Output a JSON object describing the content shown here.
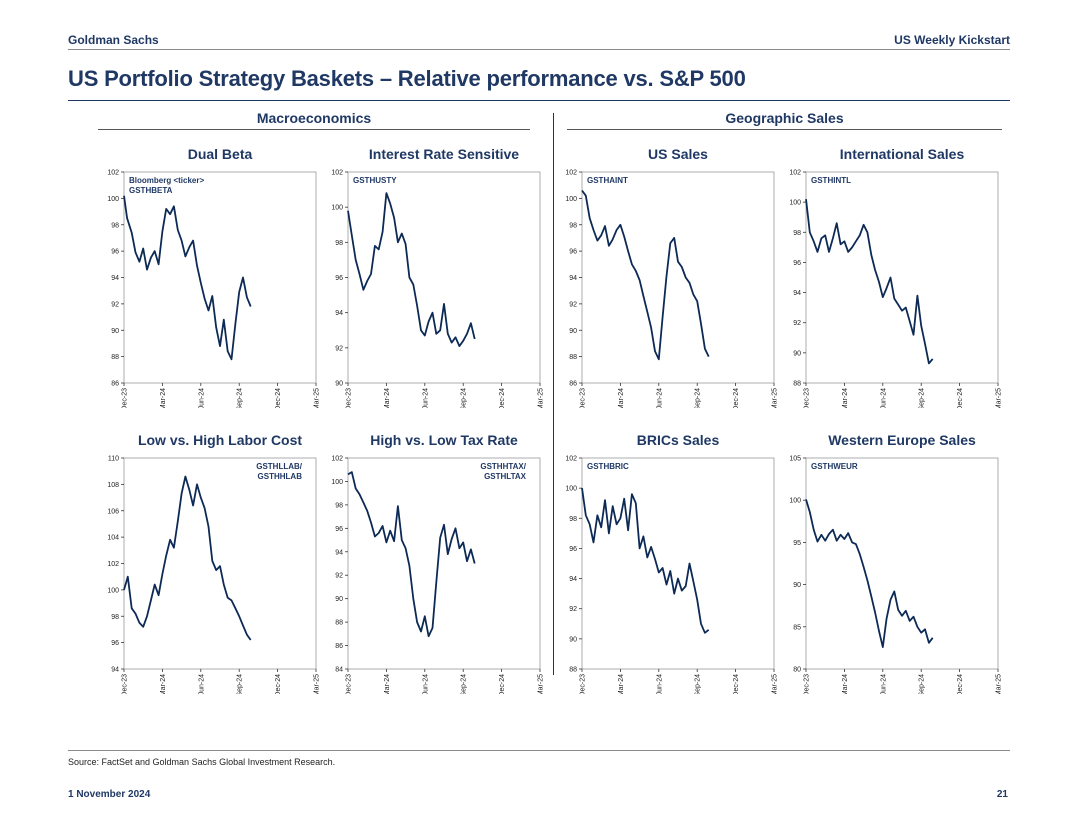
{
  "header": {
    "firm": "Goldman Sachs",
    "report": "US Weekly Kickstart"
  },
  "title": "US Portfolio Strategy Baskets – Relative performance vs. S&P 500",
  "sections": {
    "left": "Macroeconomics",
    "right": "Geographic Sales"
  },
  "footer": {
    "source": "Source: FactSet and Goldman Sachs Global Investment Research.",
    "date": "1 November 2024",
    "page": "21"
  },
  "colors": {
    "line": "#0c2a55",
    "text": "#1f3864",
    "axis": "#333333"
  },
  "chart_data": [
    {
      "type": "line",
      "title": "Dual Beta",
      "annotation": [
        "Bloomberg <ticker>",
        "GSTHBETA"
      ],
      "annotation_align": "left",
      "ylim": [
        86,
        102
      ],
      "yticks": [
        86,
        88,
        90,
        92,
        94,
        96,
        98,
        100,
        102
      ],
      "xticks": [
        "Dec-23",
        "Mar-24",
        "Jun-24",
        "Sep-24",
        "Dec-24",
        "Mar-25"
      ],
      "x": [
        0,
        0.08,
        0.2,
        0.3,
        0.4,
        0.5,
        0.6,
        0.7,
        0.8,
        0.9,
        1.0,
        1.1,
        1.2,
        1.3,
        1.4,
        1.5,
        1.6,
        1.7,
        1.8,
        1.9,
        2.0,
        2.1,
        2.2,
        2.3,
        2.4,
        2.5,
        2.6,
        2.7,
        2.8,
        2.9,
        3.0,
        3.1,
        3.2,
        3.3
      ],
      "values": [
        100.2,
        98.5,
        97.4,
        95.9,
        95.2,
        96.2,
        94.6,
        95.5,
        96.0,
        95.0,
        97.5,
        99.2,
        98.8,
        99.4,
        97.6,
        96.8,
        95.6,
        96.3,
        96.8,
        94.9,
        93.6,
        92.4,
        91.5,
        92.6,
        90.2,
        88.8,
        90.8,
        88.4,
        87.8,
        90.5,
        92.9,
        94.0,
        92.5,
        91.8
      ]
    },
    {
      "type": "line",
      "title": "Interest Rate Sensitive",
      "annotation": [
        "GSTHUSTY"
      ],
      "annotation_align": "left",
      "ylim": [
        90,
        102
      ],
      "yticks": [
        90,
        92,
        94,
        96,
        98,
        100,
        102
      ],
      "xticks": [
        "Dec-23",
        "Mar-24",
        "Jun-24",
        "Sep-24",
        "Dec-24",
        "Mar-25"
      ],
      "x": [
        0,
        0.1,
        0.2,
        0.3,
        0.4,
        0.5,
        0.6,
        0.7,
        0.8,
        0.9,
        1.0,
        1.1,
        1.2,
        1.3,
        1.4,
        1.5,
        1.6,
        1.7,
        1.8,
        1.9,
        2.0,
        2.1,
        2.2,
        2.3,
        2.4,
        2.5,
        2.6,
        2.7,
        2.8,
        2.9,
        3.0,
        3.1,
        3.2,
        3.3
      ],
      "values": [
        99.8,
        98.4,
        97.0,
        96.2,
        95.3,
        95.8,
        96.2,
        97.8,
        97.6,
        98.6,
        100.8,
        100.2,
        99.4,
        98.0,
        98.5,
        97.9,
        96.0,
        95.6,
        94.4,
        93.0,
        92.7,
        93.5,
        94.0,
        92.8,
        93.0,
        94.5,
        92.8,
        92.3,
        92.6,
        92.1,
        92.4,
        92.8,
        93.4,
        92.5
      ]
    },
    {
      "type": "line",
      "title": "US Sales",
      "annotation": [
        "GSTHAINT"
      ],
      "annotation_align": "left",
      "ylim": [
        86,
        102
      ],
      "yticks": [
        86,
        88,
        90,
        92,
        94,
        96,
        98,
        100,
        102
      ],
      "xticks": [
        "Dec-23",
        "Mar-24",
        "Jun-24",
        "Sep-24",
        "Dec-24",
        "Mar-25"
      ],
      "x": [
        0,
        0.1,
        0.2,
        0.3,
        0.4,
        0.5,
        0.6,
        0.7,
        0.8,
        0.9,
        1.0,
        1.1,
        1.2,
        1.3,
        1.4,
        1.5,
        1.6,
        1.7,
        1.8,
        1.9,
        2.0,
        2.1,
        2.2,
        2.3,
        2.4,
        2.5,
        2.6,
        2.7,
        2.8,
        2.9,
        3.0,
        3.1,
        3.2,
        3.3
      ],
      "values": [
        100.6,
        100.2,
        98.5,
        97.6,
        96.8,
        97.2,
        97.9,
        96.4,
        96.9,
        97.6,
        98.0,
        97.1,
        96.0,
        95.0,
        94.5,
        93.8,
        92.6,
        91.4,
        90.2,
        88.4,
        87.8,
        91.0,
        94.1,
        96.6,
        97.0,
        95.2,
        94.8,
        94.0,
        93.6,
        92.7,
        92.2,
        90.5,
        88.6,
        88.0
      ]
    },
    {
      "type": "line",
      "title": "International Sales",
      "annotation": [
        "GSTHINTL"
      ],
      "annotation_align": "left",
      "ylim": [
        88,
        102
      ],
      "yticks": [
        88,
        90,
        92,
        94,
        96,
        98,
        100,
        102
      ],
      "xticks": [
        "Dec-23",
        "Mar-24",
        "Jun-24",
        "Sep-24",
        "Dec-24",
        "Mar-25"
      ],
      "x": [
        0,
        0.1,
        0.2,
        0.3,
        0.4,
        0.5,
        0.6,
        0.7,
        0.8,
        0.9,
        1.0,
        1.1,
        1.2,
        1.3,
        1.4,
        1.5,
        1.6,
        1.7,
        1.8,
        1.9,
        2.0,
        2.1,
        2.2,
        2.3,
        2.4,
        2.5,
        2.6,
        2.7,
        2.8,
        2.9,
        3.0,
        3.1,
        3.2,
        3.3
      ],
      "values": [
        100.2,
        98.0,
        97.4,
        96.7,
        97.6,
        97.8,
        96.7,
        97.6,
        98.6,
        97.2,
        97.4,
        96.7,
        97.0,
        97.4,
        97.8,
        98.5,
        98.0,
        96.5,
        95.5,
        94.7,
        93.7,
        94.3,
        95.0,
        93.6,
        93.2,
        92.8,
        93.0,
        92.1,
        91.2,
        93.8,
        91.8,
        90.6,
        89.3,
        89.6
      ]
    },
    {
      "type": "line",
      "title": "Low vs. High Labor Cost",
      "annotation": [
        "GSTHLLAB/",
        "GSTHHLAB"
      ],
      "annotation_align": "right",
      "ylim": [
        94,
        110
      ],
      "yticks": [
        94,
        96,
        98,
        100,
        102,
        104,
        106,
        108,
        110
      ],
      "xticks": [
        "Dec-23",
        "Mar-24",
        "Jun-24",
        "Sep-24",
        "Dec-24",
        "Mar-25"
      ],
      "x": [
        0,
        0.1,
        0.2,
        0.3,
        0.4,
        0.5,
        0.6,
        0.7,
        0.8,
        0.9,
        1.0,
        1.1,
        1.2,
        1.3,
        1.4,
        1.5,
        1.6,
        1.7,
        1.8,
        1.9,
        2.0,
        2.1,
        2.2,
        2.3,
        2.4,
        2.5,
        2.6,
        2.7,
        2.8,
        2.9,
        3.0,
        3.1,
        3.2,
        3.3
      ],
      "values": [
        100.0,
        101.0,
        98.6,
        98.2,
        97.5,
        97.2,
        98.0,
        99.2,
        100.4,
        99.6,
        101.2,
        102.6,
        103.8,
        103.2,
        105.2,
        107.3,
        108.6,
        107.6,
        106.4,
        108.0,
        107.0,
        106.2,
        104.8,
        102.2,
        101.5,
        101.8,
        100.4,
        99.4,
        99.2,
        98.6,
        98.0,
        97.3,
        96.6,
        96.2
      ]
    },
    {
      "type": "line",
      "title": "High vs. Low Tax Rate",
      "annotation": [
        "GSTHHTAX/",
        "GSTHLTAX"
      ],
      "annotation_align": "right",
      "ylim": [
        84,
        102
      ],
      "yticks": [
        84,
        86,
        88,
        90,
        92,
        94,
        96,
        98,
        100,
        102
      ],
      "xticks": [
        "Dec-23",
        "Mar-24",
        "Jun-24",
        "Sep-24",
        "Dec-24",
        "Mar-25"
      ],
      "x": [
        0,
        0.1,
        0.2,
        0.3,
        0.4,
        0.5,
        0.6,
        0.7,
        0.8,
        0.9,
        1.0,
        1.1,
        1.2,
        1.3,
        1.4,
        1.5,
        1.6,
        1.7,
        1.8,
        1.9,
        2.0,
        2.1,
        2.2,
        2.3,
        2.4,
        2.5,
        2.6,
        2.7,
        2.8,
        2.9,
        3.0,
        3.1,
        3.2,
        3.3
      ],
      "values": [
        100.6,
        100.8,
        99.4,
        98.9,
        98.2,
        97.5,
        96.5,
        95.3,
        95.6,
        96.2,
        94.8,
        95.8,
        94.9,
        97.9,
        95.0,
        94.3,
        92.8,
        90.0,
        88.0,
        87.2,
        88.5,
        86.8,
        87.5,
        91.4,
        95.2,
        96.3,
        93.8,
        95.1,
        96.0,
        94.3,
        94.8,
        93.2,
        94.2,
        93.0
      ]
    },
    {
      "type": "line",
      "title": "BRICs Sales",
      "annotation": [
        "GSTHBRIC"
      ],
      "annotation_align": "left",
      "ylim": [
        88,
        102
      ],
      "yticks": [
        88,
        90,
        92,
        94,
        96,
        98,
        100,
        102
      ],
      "xticks": [
        "Dec-23",
        "Mar-24",
        "Jun-24",
        "Sep-24",
        "Dec-24",
        "Mar-25"
      ],
      "x": [
        0,
        0.1,
        0.2,
        0.3,
        0.4,
        0.5,
        0.6,
        0.7,
        0.8,
        0.9,
        1.0,
        1.1,
        1.2,
        1.3,
        1.4,
        1.5,
        1.6,
        1.7,
        1.8,
        1.9,
        2.0,
        2.1,
        2.2,
        2.3,
        2.4,
        2.5,
        2.6,
        2.7,
        2.8,
        2.9,
        3.0,
        3.1,
        3.2,
        3.3
      ],
      "values": [
        100.0,
        98.2,
        97.6,
        96.4,
        98.2,
        97.4,
        99.2,
        97.0,
        98.8,
        97.6,
        98.0,
        99.3,
        97.2,
        99.6,
        99.0,
        96.0,
        96.8,
        95.4,
        96.1,
        95.3,
        94.4,
        94.7,
        93.6,
        94.5,
        93.0,
        94.0,
        93.2,
        93.5,
        95.0,
        93.8,
        92.6,
        91.0,
        90.4,
        90.6
      ]
    },
    {
      "type": "line",
      "title": "Western Europe Sales",
      "annotation": [
        "GSTHWEUR"
      ],
      "annotation_align": "left",
      "ylim": [
        80,
        105
      ],
      "yticks": [
        80,
        85,
        90,
        95,
        100,
        105
      ],
      "xticks": [
        "Dec-23",
        "Mar-24",
        "Jun-24",
        "Sep-24",
        "Dec-24",
        "Mar-25"
      ],
      "x": [
        0,
        0.1,
        0.2,
        0.3,
        0.4,
        0.5,
        0.6,
        0.7,
        0.8,
        0.9,
        1.0,
        1.1,
        1.2,
        1.3,
        1.4,
        1.5,
        1.6,
        1.7,
        1.8,
        1.9,
        2.0,
        2.1,
        2.2,
        2.3,
        2.4,
        2.5,
        2.6,
        2.7,
        2.8,
        2.9,
        3.0,
        3.1,
        3.2,
        3.3
      ],
      "values": [
        100.1,
        98.6,
        96.5,
        95.1,
        95.9,
        95.2,
        96.0,
        96.5,
        95.2,
        95.9,
        95.4,
        96.1,
        95.0,
        94.8,
        93.6,
        92.1,
        90.5,
        88.6,
        86.7,
        84.5,
        82.6,
        86.0,
        88.2,
        89.2,
        87.0,
        86.3,
        86.9,
        85.7,
        86.2,
        85.0,
        84.3,
        84.7,
        83.1,
        83.7
      ]
    }
  ]
}
